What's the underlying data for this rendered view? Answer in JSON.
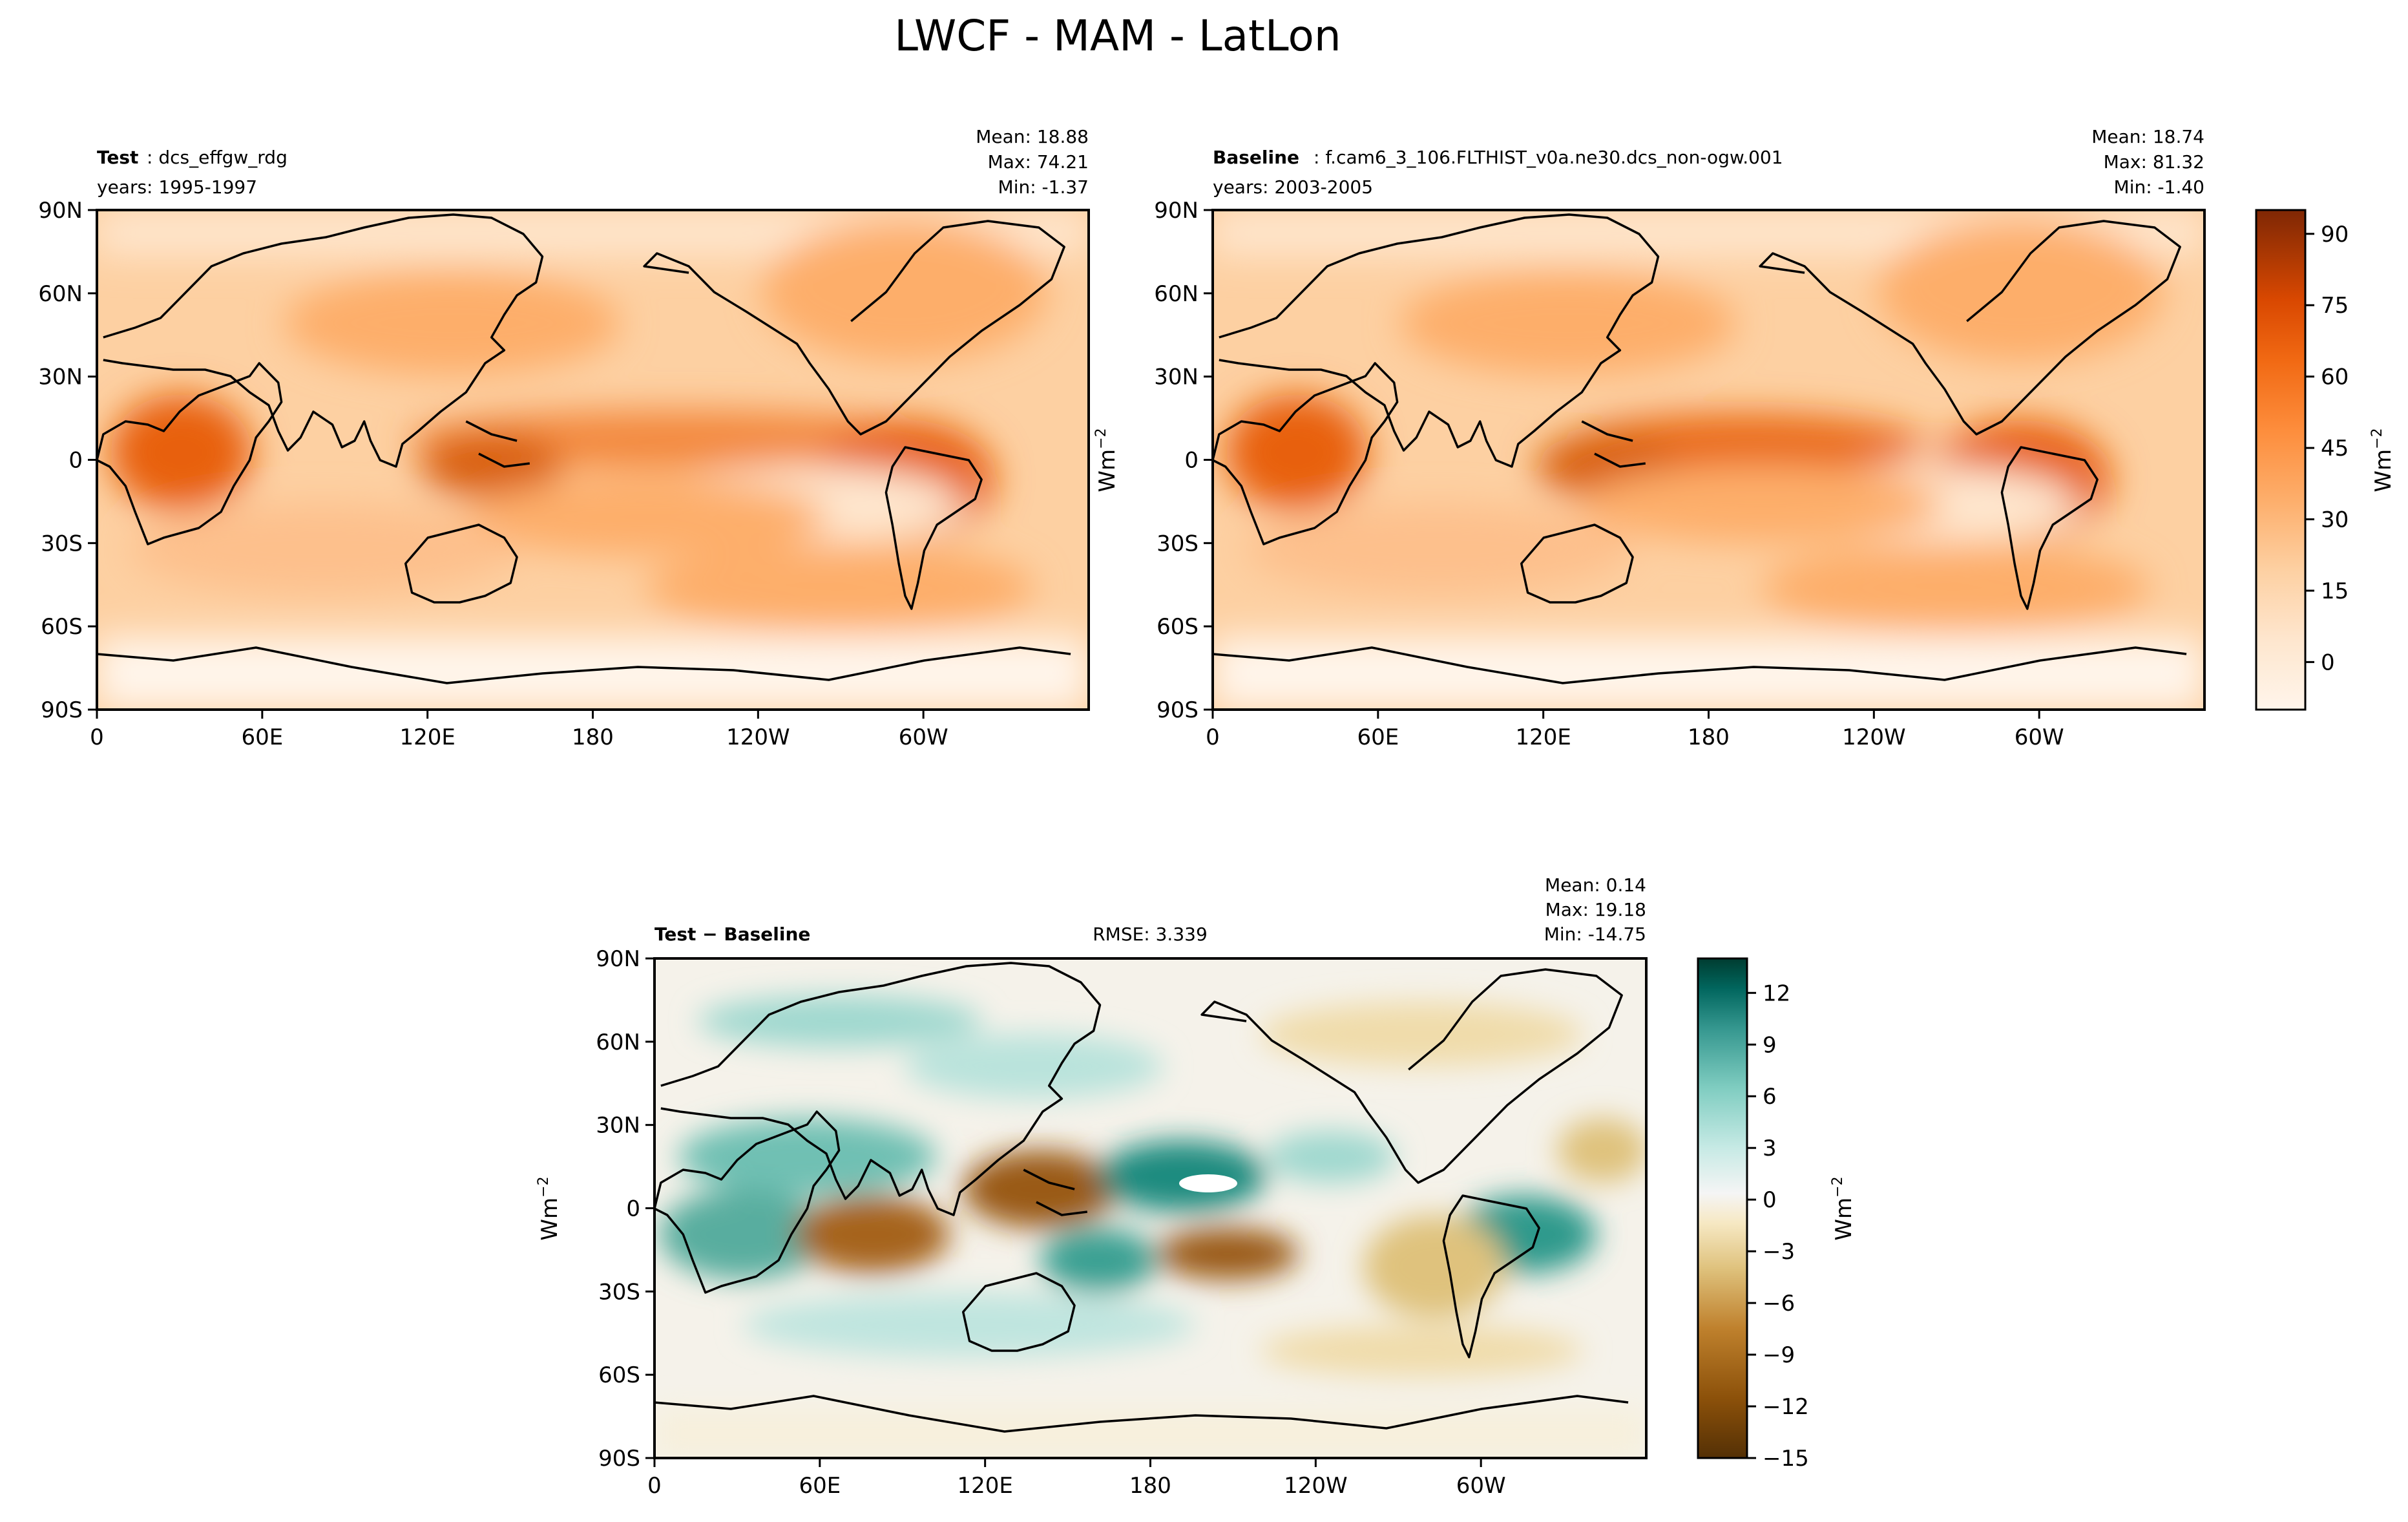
{
  "figure": {
    "title": "LWCF - MAM - LatLon"
  },
  "colors": {
    "seq": [
      "#fff5eb",
      "#fee6ce",
      "#fdd0a2",
      "#fdae6b",
      "#fd8d3c",
      "#f16913",
      "#d94801",
      "#a63603",
      "#7f2704"
    ],
    "div": [
      "#543005",
      "#8c510a",
      "#bf812d",
      "#dfc27d",
      "#f6e8c3",
      "#f5f5f5",
      "#c7eae5",
      "#80cdc1",
      "#35978f",
      "#01665e",
      "#003c30"
    ],
    "frame": "#000000"
  },
  "map_axes": {
    "x_ticks": [
      "0",
      "60E",
      "120E",
      "180",
      "120W",
      "60W"
    ],
    "y_ticks": [
      "90N",
      "60N",
      "30N",
      "0",
      "30S",
      "60S",
      "90S"
    ]
  },
  "panels": {
    "test": {
      "tag": "Test",
      "name": "dcs_effgw_rdg",
      "years": "years: 1995-1997",
      "mean": "Mean: 18.88",
      "max": "Max: 74.21",
      "min": "Min: -1.37"
    },
    "baseline": {
      "tag": "Baseline",
      "name": "f.cam6_3_106.FLTHIST_v0a.ne30.dcs_non-ogw.001",
      "years": "years: 2003-2005",
      "mean": "Mean: 18.74",
      "max": "Max: 81.32",
      "min": "Min: -1.40"
    },
    "diff": {
      "tag": "Test",
      "tag2": "Baseline",
      "rmse": "RMSE: 3.339",
      "mean": "Mean:  0.14",
      "max": "Max: 19.18",
      "min": "Min: -14.75"
    }
  },
  "colorbars": {
    "seq": {
      "label": "Wm",
      "exp": "−2",
      "ticks": [
        "90",
        "75",
        "60",
        "45",
        "30",
        "15",
        "0"
      ]
    },
    "div": {
      "label": "Wm",
      "exp": "−2",
      "ticks": [
        "12",
        "9",
        "6",
        "3",
        "0",
        "−3",
        "−6",
        "−9",
        "−12",
        "−15"
      ]
    },
    "ylabel": {
      "text": "Wm",
      "exp": "−2"
    }
  },
  "chart_data": [
    {
      "type": "heatmap",
      "title": "Test: dcs_effgw_rdg",
      "subtitle": "years: 1995-1997",
      "xlabel": "",
      "ylabel": "Wm^-2",
      "x_ticks": [
        "0",
        "60E",
        "120E",
        "180",
        "120W",
        "60W"
      ],
      "y_ticks": [
        "90N",
        "60N",
        "30N",
        "0",
        "30S",
        "60S",
        "90S"
      ],
      "xlim": [
        0,
        360
      ],
      "ylim": [
        -90,
        90
      ],
      "stats": {
        "mean": 18.88,
        "max": 74.21,
        "min": -1.37
      },
      "colorbar": {
        "ticks": [
          90,
          75,
          60,
          45,
          30,
          15,
          0
        ],
        "range": [
          -10,
          95
        ],
        "colormap": "Oranges"
      }
    },
    {
      "type": "heatmap",
      "title": "Baseline: f.cam6_3_106.FLTHIST_v0a.ne30.dcs_non-ogw.001",
      "subtitle": "years: 2003-2005",
      "xlabel": "",
      "ylabel": "",
      "x_ticks": [
        "0",
        "60E",
        "120E",
        "180",
        "120W",
        "60W"
      ],
      "y_ticks": [
        "90N",
        "60N",
        "30N",
        "0",
        "30S",
        "60S",
        "90S"
      ],
      "xlim": [
        0,
        360
      ],
      "ylim": [
        -90,
        90
      ],
      "stats": {
        "mean": 18.74,
        "max": 81.32,
        "min": -1.4
      },
      "colorbar": {
        "ticks": [
          90,
          75,
          60,
          45,
          30,
          15,
          0
        ],
        "range": [
          -10,
          95
        ],
        "colormap": "Oranges"
      }
    },
    {
      "type": "heatmap",
      "title": "Test − Baseline",
      "subtitle": "RMSE: 3.339",
      "xlabel": "",
      "ylabel": "Wm^-2",
      "x_ticks": [
        "0",
        "60E",
        "120E",
        "180",
        "120W",
        "60W"
      ],
      "y_ticks": [
        "90N",
        "60N",
        "30N",
        "0",
        "30S",
        "60S",
        "90S"
      ],
      "xlim": [
        0,
        360
      ],
      "ylim": [
        -90,
        90
      ],
      "stats": {
        "mean": 0.14,
        "max": 19.18,
        "min": -14.75,
        "rmse": 3.339
      },
      "colorbar": {
        "ticks": [
          12,
          9,
          6,
          3,
          0,
          -3,
          -6,
          -9,
          -12,
          -15
        ],
        "range": [
          -15,
          14
        ],
        "colormap": "BrBG"
      }
    }
  ]
}
